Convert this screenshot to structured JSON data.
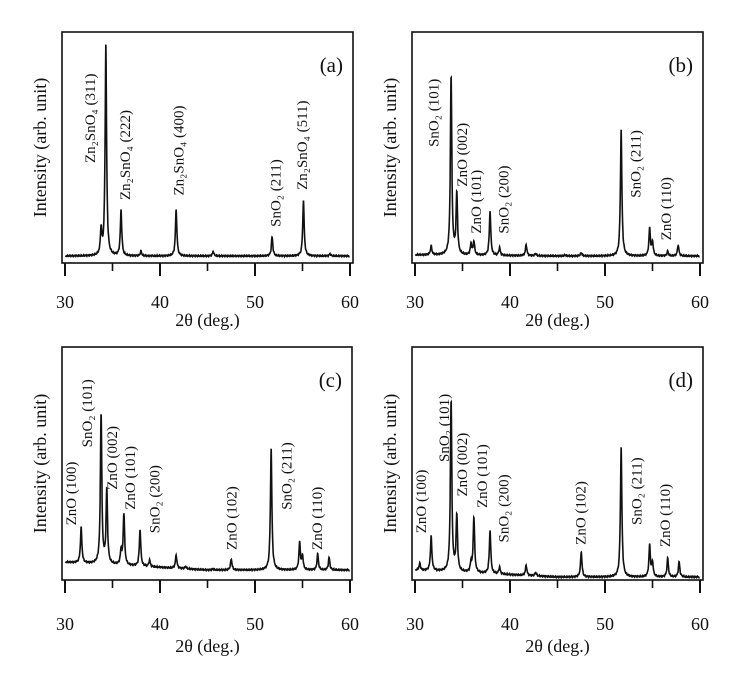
{
  "chart_data": [
    {
      "type": "line",
      "panel_label": "(a)",
      "xlabel": "2θ (deg.)",
      "ylabel": "Intensity (arb. unit)",
      "xlim": [
        30,
        60
      ],
      "xticks": [
        "30",
        "40",
        "50",
        "60"
      ],
      "xminor_ticks": [
        35,
        45,
        55
      ],
      "y_ticks_shown": false,
      "grid": false,
      "background": [
        0,
        0
      ],
      "peaks": [
        {
          "x": 33.8,
          "y": 11
        },
        {
          "x": 34.3,
          "y": 95
        },
        {
          "x": 35.9,
          "y": 20.5
        },
        {
          "x": 38.0,
          "y": 2
        },
        {
          "x": 41.7,
          "y": 21
        },
        {
          "x": 45.6,
          "y": 2
        },
        {
          "x": 51.8,
          "y": 8.5
        },
        {
          "x": 55.1,
          "y": 25
        },
        {
          "x": 57.9,
          "y": 1
        }
      ],
      "annotations": [
        {
          "text": "Zn₂SnO₄ (311)",
          "x": 32.8,
          "y": 41.5
        },
        {
          "text": "Zn₂SnO₄ (222)",
          "x": 36.5,
          "y": 25
        },
        {
          "text": "Zn₂SnO₄ (400)",
          "x": 42.1,
          "y": 27
        },
        {
          "text": "SnO₂ (211)",
          "x": 52.3,
          "y": 13
        },
        {
          "text": "Zn₂SnO₄ (511)",
          "x": 55.1,
          "y": 29.5
        }
      ]
    },
    {
      "type": "line",
      "panel_label": "(b)",
      "xlabel": "2θ (deg.)",
      "ylabel": "Intensity (arb. unit)",
      "xlim": [
        30,
        60
      ],
      "xticks": [
        "30",
        "40",
        "50",
        "60"
      ],
      "xminor_ticks": [
        35,
        45,
        55
      ],
      "y_ticks_shown": false,
      "grid": false,
      "background": [
        0.5,
        0
      ],
      "peaks": [
        {
          "x": 31.7,
          "y": 4
        },
        {
          "x": 33.8,
          "y": 79.5
        },
        {
          "x": 34.4,
          "y": 27
        },
        {
          "x": 35.9,
          "y": 5
        },
        {
          "x": 36.2,
          "y": 6
        },
        {
          "x": 37.9,
          "y": 20
        },
        {
          "x": 38.9,
          "y": 3.5
        },
        {
          "x": 41.7,
          "y": 5
        },
        {
          "x": 42.7,
          "y": 1
        },
        {
          "x": 45.8,
          "y": 0.5
        },
        {
          "x": 47.5,
          "y": 1.5
        },
        {
          "x": 51.7,
          "y": 57
        },
        {
          "x": 54.7,
          "y": 12.5
        },
        {
          "x": 55.0,
          "y": 6
        },
        {
          "x": 56.6,
          "y": 2
        },
        {
          "x": 57.7,
          "y": 5
        }
      ],
      "annotations": [
        {
          "text": "SnO₂ (101)",
          "x": 32.1,
          "y": 48.7
        },
        {
          "text": "ZnO (002)",
          "x": 35.1,
          "y": 31
        },
        {
          "text": "ZnO (101)",
          "x": 36.6,
          "y": 10
        },
        {
          "text": "SnO₂ (200)",
          "x": 39.5,
          "y": 10
        },
        {
          "text": "SnO₂ (211)",
          "x": 53.4,
          "y": 26
        },
        {
          "text": "ZnO (110)",
          "x": 56.6,
          "y": 7
        }
      ]
    },
    {
      "type": "line",
      "panel_label": "(c)",
      "xlabel": "2θ (deg.)",
      "ylabel": "Intensity (arb. unit)",
      "xlim": [
        30,
        60
      ],
      "xticks": [
        "30",
        "40",
        "50",
        "60"
      ],
      "xminor_ticks": [
        35,
        45,
        55
      ],
      "y_ticks_shown": false,
      "grid": false,
      "background": [
        3.5,
        0
      ],
      "peaks": [
        {
          "x": 31.7,
          "y": 16
        },
        {
          "x": 33.8,
          "y": 67
        },
        {
          "x": 34.4,
          "y": 33
        },
        {
          "x": 35.9,
          "y": 6
        },
        {
          "x": 36.2,
          "y": 23
        },
        {
          "x": 37.9,
          "y": 16.5
        },
        {
          "x": 38.9,
          "y": 3
        },
        {
          "x": 41.7,
          "y": 6
        },
        {
          "x": 42.7,
          "y": 1
        },
        {
          "x": 45.6,
          "y": 0.5
        },
        {
          "x": 47.5,
          "y": 5
        },
        {
          "x": 51.7,
          "y": 55
        },
        {
          "x": 54.7,
          "y": 12.5
        },
        {
          "x": 55.0,
          "y": 6
        },
        {
          "x": 56.6,
          "y": 7
        },
        {
          "x": 57.8,
          "y": 5.5
        }
      ],
      "annotations": [
        {
          "text": "ZnO (100)",
          "x": 30.8,
          "y": 20
        },
        {
          "text": "SnO₂ (101)",
          "x": 32.5,
          "y": 55
        },
        {
          "text": "ZnO (002)",
          "x": 35.1,
          "y": 36
        },
        {
          "text": "ZnO (101)",
          "x": 37.0,
          "y": 27
        },
        {
          "text": "SnO₂ (200)",
          "x": 39.6,
          "y": 16.5
        },
        {
          "text": "ZnO (102)",
          "x": 47.7,
          "y": 9
        },
        {
          "text": "SnO₂ (211)",
          "x": 53.5,
          "y": 27
        },
        {
          "text": "ZnO (110)",
          "x": 56.7,
          "y": 9
        }
      ]
    },
    {
      "type": "line",
      "panel_label": "(d)",
      "xlabel": "2θ (deg.)",
      "ylabel": "Intensity (arb. unit)",
      "xlim": [
        30,
        60
      ],
      "xticks": [
        "30",
        "40",
        "50",
        "60"
      ],
      "xminor_ticks": [
        35,
        45,
        55
      ],
      "y_ticks_shown": false,
      "grid": false,
      "background": [
        3,
        0
      ],
      "peaks": [
        {
          "x": 30.5,
          "y": 3
        },
        {
          "x": 31.7,
          "y": 15
        },
        {
          "x": 33.8,
          "y": 74
        },
        {
          "x": 34.4,
          "y": 24
        },
        {
          "x": 35.9,
          "y": 4
        },
        {
          "x": 36.2,
          "y": 24
        },
        {
          "x": 37.9,
          "y": 19
        },
        {
          "x": 38.9,
          "y": 3
        },
        {
          "x": 41.7,
          "y": 4.5
        },
        {
          "x": 42.7,
          "y": 1.5
        },
        {
          "x": 47.5,
          "y": 11
        },
        {
          "x": 51.7,
          "y": 57
        },
        {
          "x": 54.7,
          "y": 14
        },
        {
          "x": 55.0,
          "y": 6
        },
        {
          "x": 56.6,
          "y": 8
        },
        {
          "x": 57.8,
          "y": 6.5
        }
      ],
      "annotations": [
        {
          "text": "ZnO (100)",
          "x": 30.8,
          "y": 19
        },
        {
          "text": "SnO₂ (101)",
          "x": 33.2,
          "y": 50
        },
        {
          "text": "ZnO (002)",
          "x": 35.1,
          "y": 35
        },
        {
          "text": "ZnO (101)",
          "x": 37.2,
          "y": 30
        },
        {
          "text": "SnO₂ (200)",
          "x": 39.5,
          "y": 15
        },
        {
          "text": "ZnO (102)",
          "x": 47.6,
          "y": 14
        },
        {
          "text": "SnO₂ (211)",
          "x": 53.5,
          "y": 22.6
        },
        {
          "text": "ZnO (110)",
          "x": 56.5,
          "y": 13
        }
      ]
    }
  ]
}
